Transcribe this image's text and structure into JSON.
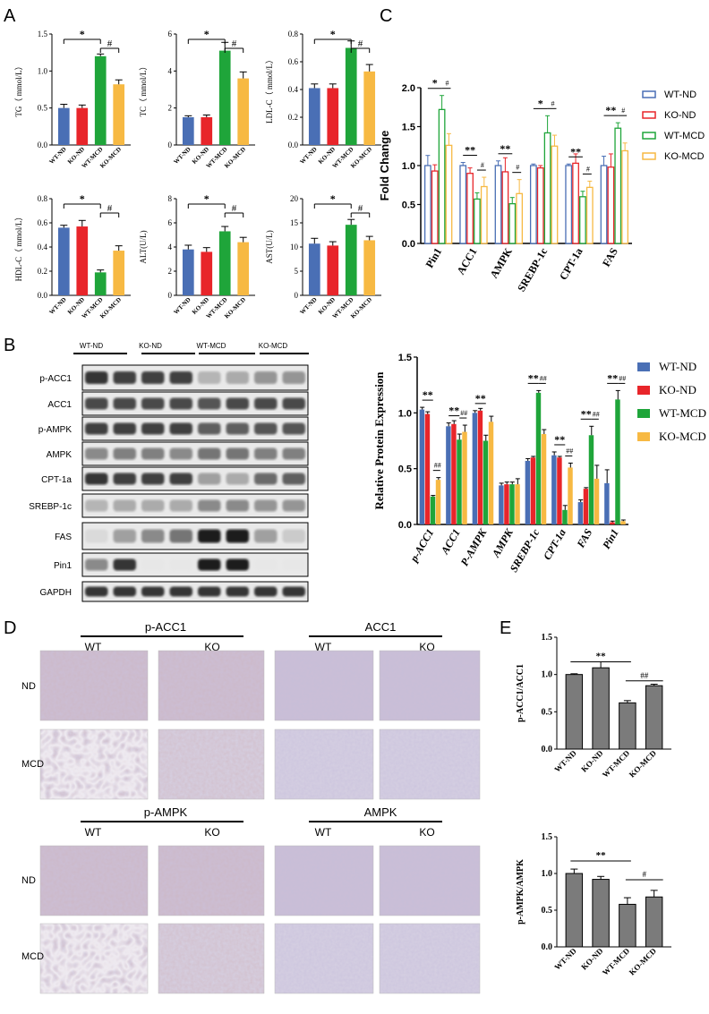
{
  "colors": {
    "wt_nd": "#4A6FB5",
    "ko_nd": "#E8252A",
    "wt_mcd": "#1FA53A",
    "ko_mcd": "#F7B943",
    "gray": "#7B7B7B",
    "blot_bg": "#E9E9E9",
    "tissue": "#9A92B6"
  },
  "panel_labels": {
    "a": "A",
    "b": "B",
    "c": "C",
    "d": "D",
    "e": "E"
  },
  "group_labels": [
    "WT-ND",
    "KO-ND",
    "WT-MCD",
    "KO-MCD"
  ],
  "sig": {
    "star": "*",
    "double_star": "**",
    "hash": "#",
    "double_hash": "##"
  },
  "panel_a": [
    {
      "ylabel": "TG（ mmol/L）",
      "ylim": [
        0,
        1.5
      ],
      "ticks": [
        0,
        0.5,
        1.0,
        1.5
      ],
      "tick_labels": [
        "0.0",
        "0.5",
        "1.0",
        "1.5"
      ],
      "values": [
        0.5,
        0.5,
        1.2,
        0.82
      ],
      "errors": [
        0.05,
        0.04,
        0.03,
        0.06
      ]
    },
    {
      "ylabel": "TC（ mmol/L）",
      "ylim": [
        0,
        6
      ],
      "ticks": [
        0,
        2,
        4,
        6
      ],
      "tick_labels": [
        "0",
        "2",
        "4",
        "6"
      ],
      "values": [
        1.5,
        1.5,
        5.1,
        3.6
      ],
      "errors": [
        0.08,
        0.12,
        0.45,
        0.35
      ]
    },
    {
      "ylabel": "LDL-C（ mmol/L）",
      "ylim": [
        0,
        0.8
      ],
      "ticks": [
        0,
        0.2,
        0.4,
        0.6,
        0.8
      ],
      "tick_labels": [
        "0.0",
        "0.2",
        "0.4",
        "0.6",
        "0.8"
      ],
      "values": [
        0.41,
        0.41,
        0.7,
        0.53
      ],
      "errors": [
        0.03,
        0.03,
        0.05,
        0.05
      ]
    },
    {
      "ylabel": "HDL-C（ mmol/L）",
      "ylim": [
        0,
        0.8
      ],
      "ticks": [
        0,
        0.2,
        0.4,
        0.6,
        0.8
      ],
      "tick_labels": [
        "0.0",
        "0.2",
        "0.4",
        "0.6",
        "0.8"
      ],
      "values": [
        0.56,
        0.57,
        0.19,
        0.37
      ],
      "errors": [
        0.02,
        0.05,
        0.02,
        0.04
      ]
    },
    {
      "ylabel": "ALT(U/L)",
      "ylim": [
        0,
        8
      ],
      "ticks": [
        0,
        2,
        4,
        6,
        8
      ],
      "tick_labels": [
        "0",
        "2",
        "4",
        "6",
        "8"
      ],
      "values": [
        3.8,
        3.6,
        5.3,
        4.4
      ],
      "errors": [
        0.35,
        0.35,
        0.4,
        0.4
      ]
    },
    {
      "ylabel": "AST(U/L)",
      "ylim": [
        0,
        20
      ],
      "ticks": [
        0,
        5,
        10,
        15,
        20
      ],
      "tick_labels": [
        "0",
        "5",
        "10",
        "15",
        "20"
      ],
      "values": [
        10.7,
        10.3,
        14.6,
        11.4
      ],
      "errors": [
        1.1,
        0.8,
        1.1,
        0.8
      ]
    }
  ],
  "panel_c": {
    "ylabel": "Fold Change",
    "ylim": [
      0,
      2.0
    ],
    "ticks": [
      0,
      0.5,
      1.0,
      1.5,
      2.0
    ],
    "tick_labels": [
      "0.0",
      "0.5",
      "1.0",
      "1.5",
      "2.0"
    ],
    "categories": [
      "Pin1",
      "ACC1",
      "AMPK",
      "SREBP-1c",
      "CPT-1a",
      "FAS"
    ],
    "series": [
      {
        "name": "WT-ND",
        "values": [
          1.0,
          1.0,
          1.0,
          1.0,
          1.0,
          1.0
        ],
        "errors": [
          0.13,
          0.04,
          0.06,
          0.02,
          0.02,
          0.12
        ]
      },
      {
        "name": "KO-ND",
        "values": [
          0.93,
          0.9,
          0.92,
          0.97,
          1.03,
          0.98
        ],
        "errors": [
          0.08,
          0.07,
          0.18,
          0.03,
          0.12,
          0.17
        ]
      },
      {
        "name": "WT-MCD",
        "values": [
          1.72,
          0.57,
          0.51,
          1.42,
          0.6,
          1.48
        ],
        "errors": [
          0.18,
          0.08,
          0.08,
          0.22,
          0.07,
          0.07
        ]
      },
      {
        "name": "KO-MCD",
        "values": [
          1.26,
          0.73,
          0.64,
          1.25,
          0.72,
          1.19
        ],
        "errors": [
          0.15,
          0.12,
          0.18,
          0.14,
          0.08,
          0.1
        ]
      }
    ],
    "sig_top": [
      "*",
      "**",
      "**",
      "*",
      "**",
      "**"
    ],
    "sig_hash": [
      "#",
      "#",
      "#",
      "#",
      "#",
      "#"
    ]
  },
  "panel_b_blot": {
    "headers": [
      "WT-ND",
      "KO-ND",
      "WT-MCD",
      "KO-MCD"
    ],
    "proteins": [
      "p-ACC1",
      "ACC1",
      "p-AMPK",
      "AMPK",
      "CPT-1a",
      "SREBP-1c",
      "FAS",
      "Pin1",
      "GAPDH"
    ],
    "intensity": [
      [
        0.85,
        0.8,
        0.8,
        0.8,
        0.25,
        0.3,
        0.4,
        0.4
      ],
      [
        0.75,
        0.75,
        0.75,
        0.75,
        0.7,
        0.75,
        0.75,
        0.75
      ],
      [
        0.8,
        0.8,
        0.8,
        0.8,
        0.65,
        0.65,
        0.7,
        0.7
      ],
      [
        0.45,
        0.5,
        0.5,
        0.45,
        0.55,
        0.55,
        0.5,
        0.5
      ],
      [
        0.85,
        0.8,
        0.8,
        0.8,
        0.35,
        0.3,
        0.6,
        0.65
      ],
      [
        0.25,
        0.3,
        0.3,
        0.3,
        0.45,
        0.45,
        0.4,
        0.4
      ],
      [
        0.08,
        0.35,
        0.45,
        0.55,
        0.95,
        0.95,
        0.35,
        0.15
      ],
      [
        0.45,
        0.85,
        0.02,
        0.02,
        0.95,
        0.95,
        0.02,
        0.02
      ],
      [
        0.85,
        0.85,
        0.85,
        0.85,
        0.85,
        0.85,
        0.85,
        0.85
      ]
    ]
  },
  "panel_b_chart": {
    "ylabel": "Relative Protein Expression",
    "ylim": [
      0,
      1.5
    ],
    "ticks": [
      0,
      0.5,
      1.0,
      1.5
    ],
    "tick_labels": [
      "0.0",
      "0.5",
      "1.0",
      "1.5"
    ],
    "categories": [
      "p-ACC1",
      "ACC1",
      "P-AMPK",
      "AMPK",
      "SREBP-1c",
      "CPT-1a",
      "FAS",
      "Pin1"
    ],
    "series": [
      {
        "name": "WT-ND",
        "values": [
          1.03,
          0.88,
          1.0,
          0.35,
          0.57,
          0.62,
          0.2,
          0.37
        ],
        "errors": [
          0.02,
          0.03,
          0.02,
          0.02,
          0.02,
          0.03,
          0.02,
          0.12
        ]
      },
      {
        "name": "KO-ND",
        "values": [
          0.99,
          0.9,
          1.02,
          0.36,
          0.6,
          0.6,
          0.32,
          0.02
        ],
        "errors": [
          0.02,
          0.03,
          0.02,
          0.02,
          0.01,
          0.01,
          0.01,
          0.01
        ]
      },
      {
        "name": "WT-MCD",
        "values": [
          0.25,
          0.76,
          0.75,
          0.36,
          1.18,
          0.13,
          0.8,
          1.12
        ],
        "errors": [
          0.01,
          0.05,
          0.05,
          0.02,
          0.02,
          0.04,
          0.08,
          0.08
        ]
      },
      {
        "name": "KO-MCD",
        "values": [
          0.4,
          0.83,
          0.92,
          0.36,
          0.81,
          0.51,
          0.41,
          0.03
        ],
        "errors": [
          0.02,
          0.06,
          0.05,
          0.05,
          0.04,
          0.04,
          0.12,
          0.01
        ]
      }
    ],
    "sig_top": [
      "**",
      "**",
      "**",
      "",
      "**",
      "**",
      "**",
      "**"
    ],
    "sig_hash": [
      "##",
      "##",
      "",
      "",
      "##",
      "##",
      "##",
      "##"
    ]
  },
  "panel_d": {
    "groups": [
      {
        "title": "p-ACC1",
        "left": "WT",
        "right": "KO"
      },
      {
        "title": "ACC1",
        "left": "WT",
        "right": "KO"
      },
      {
        "title": "p-AMPK",
        "left": "WT",
        "right": "KO"
      },
      {
        "title": "AMPK",
        "left": "WT",
        "right": "KO"
      }
    ],
    "row_labels": [
      "ND",
      "MCD"
    ]
  },
  "panel_e": [
    {
      "ylabel": "p-ACC1/ACC1",
      "ylim": [
        0,
        1.5
      ],
      "ticks": [
        0,
        0.5,
        1.0,
        1.5
      ],
      "tick_labels": [
        "0.0",
        "0.5",
        "1.0",
        "1.5"
      ],
      "values": [
        1.0,
        1.09,
        0.62,
        0.85
      ],
      "errors": [
        0.01,
        0.08,
        0.03,
        0.02
      ],
      "sig_left": "**",
      "sig_right": "##"
    },
    {
      "ylabel": "p-AMPK/AMPK",
      "ylim": [
        0,
        1.5
      ],
      "ticks": [
        0,
        0.5,
        1.0,
        1.5
      ],
      "tick_labels": [
        "0.0",
        "0.5",
        "1.0",
        "1.5"
      ],
      "values": [
        1.0,
        0.92,
        0.58,
        0.68
      ],
      "errors": [
        0.06,
        0.04,
        0.09,
        0.09
      ],
      "sig_left": "**",
      "sig_right": "#"
    }
  ],
  "chart_data": [
    {
      "type": "bar",
      "categories": [
        "WT-ND",
        "KO-ND",
        "WT-MCD",
        "KO-MCD"
      ],
      "ylabel": "TG（ mmol/L）",
      "values": [
        0.5,
        0.5,
        1.2,
        0.82
      ],
      "ylim": [
        0,
        1.5
      ]
    },
    {
      "type": "bar",
      "categories": [
        "WT-ND",
        "KO-ND",
        "WT-MCD",
        "KO-MCD"
      ],
      "ylabel": "TC（ mmol/L）",
      "values": [
        1.5,
        1.5,
        5.1,
        3.6
      ],
      "ylim": [
        0,
        6
      ]
    },
    {
      "type": "bar",
      "categories": [
        "WT-ND",
        "KO-ND",
        "WT-MCD",
        "KO-MCD"
      ],
      "ylabel": "LDL-C（ mmol/L）",
      "values": [
        0.41,
        0.41,
        0.7,
        0.53
      ],
      "ylim": [
        0,
        0.8
      ]
    },
    {
      "type": "bar",
      "categories": [
        "WT-ND",
        "KO-ND",
        "WT-MCD",
        "KO-MCD"
      ],
      "ylabel": "HDL-C（ mmol/L）",
      "values": [
        0.56,
        0.57,
        0.19,
        0.37
      ],
      "ylim": [
        0,
        0.8
      ]
    },
    {
      "type": "bar",
      "categories": [
        "WT-ND",
        "KO-ND",
        "WT-MCD",
        "KO-MCD"
      ],
      "ylabel": "ALT(U/L)",
      "values": [
        3.8,
        3.6,
        5.3,
        4.4
      ],
      "ylim": [
        0,
        8
      ]
    },
    {
      "type": "bar",
      "categories": [
        "WT-ND",
        "KO-ND",
        "WT-MCD",
        "KO-MCD"
      ],
      "ylabel": "AST(U/L)",
      "values": [
        10.7,
        10.3,
        14.6,
        11.4
      ],
      "ylim": [
        0,
        20
      ]
    },
    {
      "type": "bar",
      "ylabel": "Fold Change",
      "categories": [
        "Pin1",
        "ACC1",
        "AMPK",
        "SREBP-1c",
        "CPT-1a",
        "FAS"
      ],
      "series": [
        {
          "name": "WT-ND",
          "values": [
            1.0,
            1.0,
            1.0,
            1.0,
            1.0,
            1.0
          ]
        },
        {
          "name": "KO-ND",
          "values": [
            0.93,
            0.9,
            0.92,
            0.97,
            1.03,
            0.98
          ]
        },
        {
          "name": "WT-MCD",
          "values": [
            1.72,
            0.57,
            0.51,
            1.42,
            0.6,
            1.48
          ]
        },
        {
          "name": "KO-MCD",
          "values": [
            1.26,
            0.73,
            0.64,
            1.25,
            0.72,
            1.19
          ]
        }
      ],
      "ylim": [
        0,
        2.0
      ],
      "legend": "top-right"
    },
    {
      "type": "bar",
      "ylabel": "Relative Protein Expression",
      "categories": [
        "p-ACC1",
        "ACC1",
        "P-AMPK",
        "AMPK",
        "SREBP-1c",
        "CPT-1a",
        "FAS",
        "Pin1"
      ],
      "series": [
        {
          "name": "WT-ND",
          "values": [
            1.03,
            0.88,
            1.0,
            0.35,
            0.57,
            0.62,
            0.2,
            0.37
          ]
        },
        {
          "name": "KO-ND",
          "values": [
            0.99,
            0.9,
            1.02,
            0.36,
            0.6,
            0.6,
            0.32,
            0.02
          ]
        },
        {
          "name": "WT-MCD",
          "values": [
            0.25,
            0.76,
            0.75,
            0.36,
            1.18,
            0.13,
            0.8,
            1.12
          ]
        },
        {
          "name": "KO-MCD",
          "values": [
            0.4,
            0.83,
            0.92,
            0.36,
            0.81,
            0.51,
            0.41,
            0.03
          ]
        }
      ],
      "ylim": [
        0,
        1.5
      ],
      "legend": "right"
    },
    {
      "type": "bar",
      "categories": [
        "WT-ND",
        "KO-ND",
        "WT-MCD",
        "KO-MCD"
      ],
      "ylabel": "p-ACC1/ACC1",
      "values": [
        1.0,
        1.09,
        0.62,
        0.85
      ],
      "ylim": [
        0,
        1.5
      ]
    },
    {
      "type": "bar",
      "categories": [
        "WT-ND",
        "KO-ND",
        "WT-MCD",
        "KO-MCD"
      ],
      "ylabel": "p-AMPK/AMPK",
      "values": [
        1.0,
        0.92,
        0.58,
        0.68
      ],
      "ylim": [
        0,
        1.5
      ]
    }
  ]
}
